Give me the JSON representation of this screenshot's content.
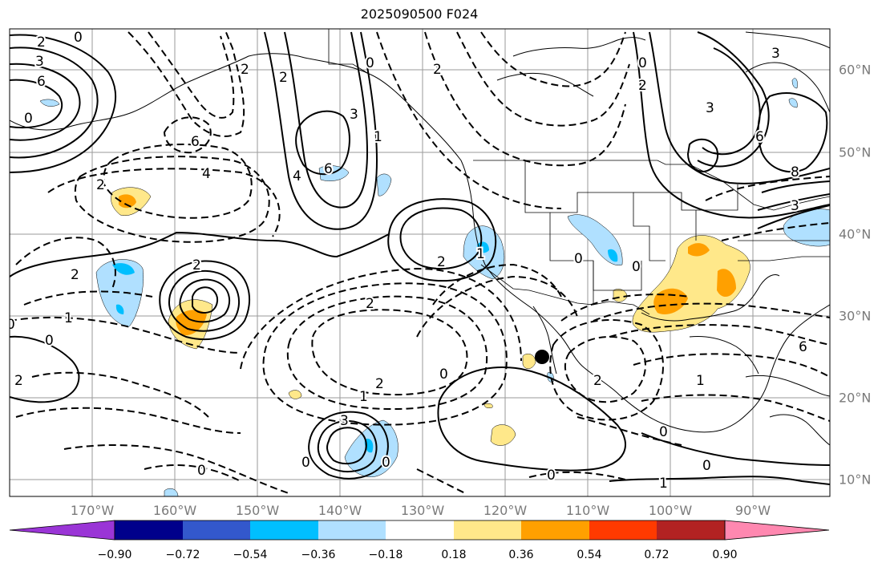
{
  "title": "2025090500 F024",
  "axes": {
    "lon_labels": [
      "170°W",
      "160°W",
      "150°W",
      "140°W",
      "130°W",
      "120°W",
      "110°W",
      "100°W",
      "90°W"
    ],
    "lat_labels": [
      "60°N",
      "50°N",
      "40°N",
      "30°N",
      "20°N",
      "10°N"
    ]
  },
  "colorbar": {
    "colors": [
      "#9a35d6",
      "#00008b",
      "#3358cc",
      "#00bfff",
      "#b0e0ff",
      "#ffffff",
      "#ffe88a",
      "#ffa000",
      "#ff3a00",
      "#b22222",
      "#ff88b0"
    ],
    "tick_labels": [
      "−0.90",
      "−0.72",
      "−0.54",
      "−0.36",
      "−0.18",
      "0.18",
      "0.36",
      "0.54",
      "0.72",
      "0.90"
    ]
  },
  "contour_labels": [
    "2",
    "0",
    "3",
    "6",
    "0",
    "2",
    "2",
    "4",
    "6",
    "2",
    "6",
    "4",
    "3",
    "1",
    "0",
    "2",
    "0",
    "1",
    "2",
    "2",
    "0",
    "2",
    "2",
    "2",
    "0",
    "1",
    "0",
    "3",
    "0",
    "0",
    "2",
    "0",
    "0",
    "1",
    "3",
    "6",
    "3",
    "8",
    "3",
    "0",
    "2",
    "2",
    "1",
    "0",
    "0",
    "0",
    "1",
    "6"
  ],
  "marker": "black-dot"
}
